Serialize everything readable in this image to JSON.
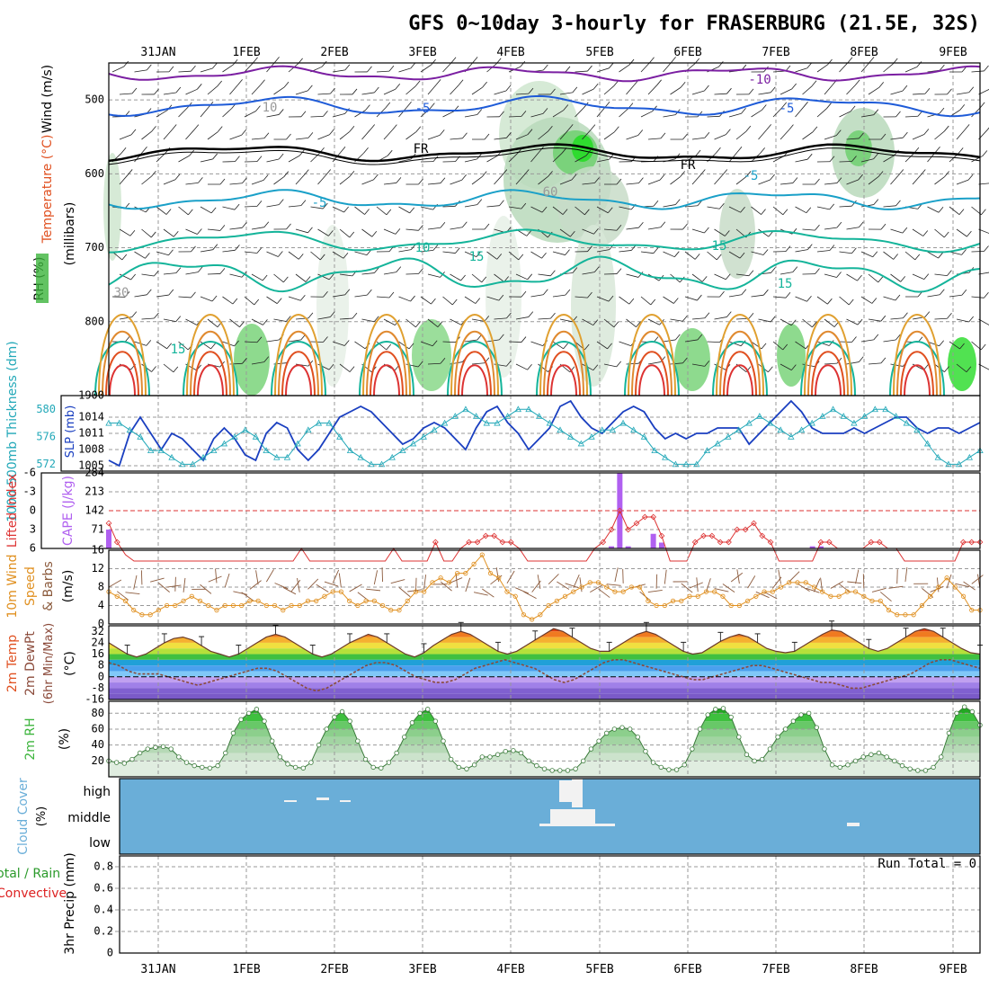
{
  "title": "GFS 0~10day 3-hourly for FRASERBURG (21.5E, 32S)",
  "dates": [
    "31JAN",
    "1FEB",
    "2FEB",
    "3FEB",
    "4FEB",
    "5FEB",
    "6FEB",
    "7FEB",
    "8FEB",
    "9FEB"
  ],
  "colors": {
    "temp0": "#7b1fa2",
    "tempneg": "#1e5bd8",
    "tempcool": "#1aa0c8",
    "tempmild": "#14b49a",
    "tempwarm": "#e0a030",
    "temphot": "#e05020",
    "freeze": "#000000",
    "rh": "#3cb43c",
    "thick": "#22a8b8",
    "slp": "#1a3fc0",
    "li": "#dd3333",
    "cape": "#b060f0",
    "wind": "#e09020",
    "barb": "#8b5a3c",
    "dew": "#8b4a3a",
    "cloud": "#6aaed8",
    "precip_total": "#2a9a2a",
    "precip_conv": "#dd2222"
  },
  "chart_data": [
    {
      "type": "contour",
      "panel": "upper-air",
      "title": "GFS 0~10day 3-hourly for FRASERBURG (21.5E, 32S)",
      "ylabel_wind": "Wind (m/s)",
      "ylabel_temp": "Temperature (°C)",
      "ylabel_rh": "RH (%)",
      "ylabel_units": "(millibars)",
      "y_ticks": [
        "500",
        "600",
        "700",
        "800"
      ],
      "ylim": [
        900,
        450
      ],
      "contour_labels": [
        "-10",
        "-5",
        "-5",
        "FR",
        "FR",
        "-5",
        "-5",
        "-10",
        "10",
        "15",
        "15",
        "15",
        "15",
        "10",
        "30",
        "30",
        "30",
        "30",
        "60"
      ]
    },
    {
      "type": "line",
      "panel": "thickness-slp",
      "ylabel_left": "1000-500mb Thickness (dm)",
      "ylabel_right": "SLP (mb)",
      "left_ticks": [
        "580",
        "576",
        "572"
      ],
      "right_ticks": [
        "1900",
        "1014",
        "1011",
        "1008",
        "1005"
      ],
      "series": [
        {
          "name": "SLP",
          "unit": "mb",
          "values": [
            1006,
            1005,
            1011,
            1014,
            1011,
            1008,
            1011,
            1010,
            1008,
            1006,
            1010,
            1012,
            1010,
            1007,
            1006,
            1011,
            1013,
            1012,
            1008,
            1006,
            1008,
            1011,
            1014,
            1015,
            1016,
            1015,
            1013,
            1011,
            1009,
            1010,
            1012,
            1013,
            1012,
            1010,
            1008,
            1012,
            1015,
            1016,
            1013,
            1011,
            1008,
            1010,
            1012,
            1016,
            1017,
            1014,
            1012,
            1011,
            1013,
            1015,
            1016,
            1015,
            1012,
            1010,
            1011,
            1010,
            1011,
            1011,
            1012,
            1012,
            1012,
            1009,
            1011,
            1013,
            1015,
            1017,
            1015,
            1012,
            1011,
            1011,
            1011,
            1012,
            1011,
            1012,
            1013,
            1014,
            1014,
            1012,
            1011,
            1012,
            1012,
            1011,
            1012,
            1013
          ]
        },
        {
          "name": "Thickness",
          "unit": "dm",
          "values": [
            578,
            578,
            577,
            576,
            574,
            574,
            573,
            572,
            572,
            573,
            574,
            575,
            576,
            577,
            576,
            574,
            573,
            573,
            575,
            577,
            578,
            578,
            576,
            574,
            573,
            572,
            572,
            573,
            574,
            575,
            576,
            577,
            578,
            579,
            580,
            579,
            578,
            578,
            579,
            580,
            580,
            579,
            578,
            577,
            576,
            575,
            576,
            577,
            577,
            578,
            577,
            576,
            574,
            573,
            572,
            572,
            572,
            574,
            575,
            576,
            577,
            578,
            579,
            578,
            577,
            576,
            577,
            578,
            579,
            580,
            579,
            578,
            579,
            580,
            580,
            579,
            578,
            577,
            575,
            573,
            572,
            572,
            573,
            574
          ]
        }
      ]
    },
    {
      "type": "bar",
      "panel": "lifted-index-cape",
      "ylabel_left": "Lifted Index",
      "ylabel_right": "CAPE (J/kg)",
      "left_ticks": [
        "-6",
        "-3",
        "0",
        "3",
        "6"
      ],
      "right_ticks": [
        "284",
        "213",
        "142",
        "71"
      ],
      "series": [
        {
          "name": "Lifted Index",
          "values": [
            2,
            5,
            7,
            8,
            8,
            8,
            8,
            8,
            8,
            8,
            8,
            8,
            8,
            8,
            8,
            8,
            8,
            8,
            8,
            8,
            8,
            8,
            8,
            6,
            8,
            8,
            8,
            8,
            8,
            8,
            8,
            8,
            8,
            8,
            6,
            8,
            8,
            8,
            8,
            5,
            8,
            8,
            6,
            5,
            5,
            4,
            4,
            5,
            5,
            6,
            8,
            8,
            8,
            8,
            8,
            8,
            8,
            8,
            6,
            5,
            3,
            0,
            3,
            2,
            1,
            1,
            4,
            8,
            8,
            8,
            5,
            4,
            4,
            5,
            5,
            3,
            3,
            2,
            4,
            5,
            8,
            8,
            8,
            8,
            8,
            5,
            5,
            6,
            6,
            6,
            6,
            5,
            5,
            6,
            6,
            8,
            8,
            8,
            8,
            8,
            8,
            8,
            5,
            5,
            5
          ]
        },
        {
          "name": "CAPE",
          "values": [
            71,
            0,
            0,
            0,
            0,
            0,
            0,
            0,
            0,
            0,
            0,
            0,
            0,
            0,
            0,
            0,
            0,
            0,
            0,
            0,
            0,
            0,
            0,
            0,
            0,
            0,
            0,
            0,
            0,
            0,
            0,
            0,
            0,
            0,
            0,
            0,
            0,
            0,
            0,
            0,
            0,
            0,
            0,
            0,
            0,
            0,
            0,
            0,
            0,
            0,
            0,
            0,
            0,
            0,
            0,
            0,
            0,
            0,
            0,
            0,
            8,
            284,
            8,
            0,
            0,
            55,
            22,
            0,
            0,
            0,
            0,
            0,
            0,
            0,
            0,
            0,
            0,
            0,
            0,
            0,
            0,
            0,
            0,
            0,
            8,
            8,
            0,
            0,
            0,
            0,
            0,
            0,
            0,
            0,
            0,
            0,
            0,
            0,
            0,
            0,
            0,
            0,
            0,
            0,
            0
          ]
        }
      ]
    },
    {
      "type": "line",
      "panel": "10m-wind",
      "ylabel": "10m Wind Speed & Barbs (m/s)",
      "y_ticks": [
        "16",
        "12",
        "8",
        "4",
        "0"
      ],
      "ylim": [
        0,
        16
      ],
      "series": [
        {
          "name": "Speed",
          "values": [
            7,
            6,
            5,
            3,
            2,
            2,
            3,
            4,
            4,
            5,
            6,
            5,
            4,
            3,
            4,
            4,
            4,
            5,
            5,
            4,
            4,
            3,
            4,
            4,
            5,
            5,
            6,
            7,
            7,
            5,
            4,
            5,
            5,
            4,
            3,
            3,
            5,
            7,
            7,
            9,
            10,
            9,
            11,
            11,
            13,
            15,
            11,
            10,
            7,
            6,
            2,
            1,
            2,
            4,
            5,
            6,
            7,
            8,
            9,
            9,
            8,
            7,
            7,
            8,
            8,
            5,
            4,
            4,
            5,
            5,
            6,
            6,
            7,
            7,
            6,
            4,
            4,
            5,
            6,
            7,
            7,
            8,
            9,
            9,
            9,
            8,
            7,
            6,
            6,
            7,
            7,
            6,
            5,
            5,
            3,
            2,
            2,
            2,
            4,
            6,
            8,
            10,
            8,
            6,
            3,
            3
          ]
        }
      ]
    },
    {
      "type": "area",
      "panel": "2m-temp",
      "ylabel": "2m Temp 2m DewPt (6hr Min/Max) (°C)",
      "y_ticks": [
        "32",
        "24",
        "16",
        "8",
        "0",
        "-8",
        "-16"
      ],
      "ylim": [
        -16,
        36
      ],
      "series": [
        {
          "name": "2m Temp",
          "values": [
            24,
            20,
            16,
            14,
            16,
            20,
            24,
            27,
            28,
            26,
            22,
            18,
            16,
            14,
            16,
            20,
            24,
            28,
            30,
            28,
            24,
            20,
            16,
            14,
            16,
            20,
            24,
            27,
            30,
            28,
            24,
            20,
            16,
            14,
            17,
            22,
            26,
            30,
            32,
            30,
            26,
            22,
            18,
            16,
            18,
            22,
            26,
            30,
            34,
            32,
            28,
            24,
            20,
            18,
            18,
            22,
            26,
            30,
            32,
            30,
            26,
            22,
            18,
            16,
            17,
            21,
            25,
            28,
            30,
            28,
            24,
            20,
            18,
            17,
            18,
            22,
            26,
            30,
            33,
            32,
            28,
            24,
            20,
            18,
            20,
            24,
            28,
            32,
            34,
            32,
            28,
            24,
            20,
            17,
            16
          ]
        },
        {
          "name": "2m DewPt",
          "values": [
            10,
            8,
            4,
            2,
            2,
            2,
            0,
            -2,
            -4,
            -6,
            -4,
            -2,
            0,
            2,
            4,
            6,
            6,
            4,
            0,
            -4,
            -8,
            -10,
            -8,
            -4,
            0,
            4,
            8,
            10,
            10,
            8,
            4,
            0,
            -2,
            -4,
            -4,
            -2,
            2,
            6,
            8,
            10,
            12,
            10,
            8,
            6,
            2,
            -2,
            -4,
            -2,
            2,
            6,
            10,
            12,
            12,
            10,
            8,
            6,
            4,
            2,
            0,
            -2,
            -2,
            0,
            2,
            4,
            6,
            8,
            8,
            6,
            4,
            2,
            0,
            -2,
            -4,
            -4,
            -6,
            -8,
            -8,
            -6,
            -4,
            -2,
            0,
            2,
            6,
            10,
            12,
            12,
            10,
            8,
            6
          ]
        }
      ]
    },
    {
      "type": "area",
      "panel": "2m-rh",
      "ylabel": "2m RH (%)",
      "y_ticks": [
        "80",
        "60",
        "40",
        "20"
      ],
      "ylim": [
        0,
        95
      ],
      "values": [
        20,
        18,
        17,
        22,
        30,
        35,
        37,
        38,
        35,
        25,
        18,
        14,
        12,
        11,
        14,
        30,
        55,
        72,
        80,
        85,
        70,
        45,
        25,
        16,
        12,
        11,
        18,
        40,
        60,
        75,
        82,
        70,
        45,
        22,
        12,
        11,
        18,
        30,
        50,
        68,
        80,
        85,
        70,
        45,
        22,
        12,
        10,
        15,
        25,
        25,
        28,
        32,
        33,
        30,
        20,
        14,
        10,
        8,
        8,
        8,
        10,
        20,
        35,
        45,
        55,
        60,
        62,
        60,
        50,
        32,
        18,
        12,
        9,
        9,
        15,
        35,
        60,
        78,
        85,
        86,
        75,
        50,
        28,
        20,
        22,
        35,
        50,
        60,
        70,
        78,
        80,
        62,
        35,
        15,
        12,
        15,
        20,
        25,
        28,
        30,
        25,
        20,
        14,
        10,
        8,
        8,
        12,
        25,
        55,
        80,
        88,
        82,
        65
      ]
    },
    {
      "type": "area",
      "panel": "cloud-cover",
      "ylabel": "Cloud Cover (%)",
      "y_ticks": [
        "high",
        "middle",
        "low"
      ]
    },
    {
      "type": "bar",
      "panel": "precip",
      "ylabel_total": "Total / Rain",
      "ylabel_conv": "Convective",
      "ylabel": "3hr Precip (mm)",
      "y_ticks": [
        "0.8",
        "0.6",
        "0.4",
        "0.2",
        "0"
      ],
      "ylim": [
        0,
        0.9
      ],
      "run_total": "Run Total = 0"
    }
  ]
}
